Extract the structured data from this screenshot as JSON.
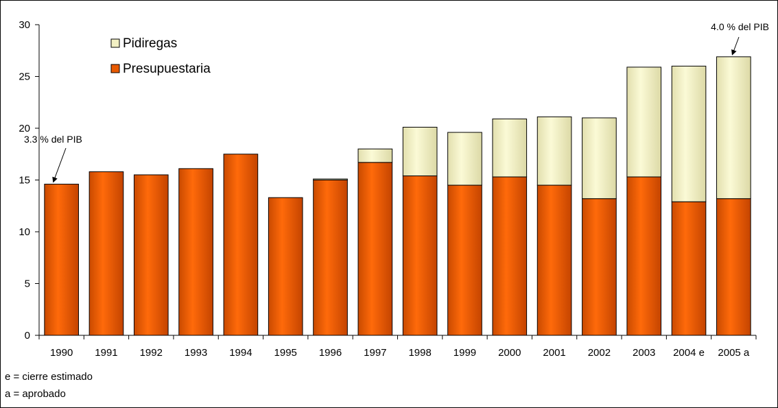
{
  "chart_data": {
    "type": "bar",
    "stacked": true,
    "categories": [
      "1990",
      "1991",
      "1992",
      "1993",
      "1994",
      "1995",
      "1996",
      "1997",
      "1998",
      "1999",
      "2000",
      "2001",
      "2002",
      "2003",
      "2004 e",
      "2005 a"
    ],
    "series": [
      {
        "name": "Presupuestaria",
        "color": "#e85a00",
        "values": [
          14.6,
          15.8,
          15.5,
          16.1,
          17.5,
          13.3,
          15.0,
          16.7,
          15.4,
          14.5,
          15.3,
          14.5,
          13.2,
          15.3,
          12.9,
          13.2
        ]
      },
      {
        "name": "Pidiregas",
        "color": "#f2f0c4",
        "values": [
          0,
          0,
          0,
          0,
          0,
          0,
          0.1,
          1.3,
          4.7,
          5.1,
          5.6,
          6.6,
          7.8,
          10.6,
          13.1,
          13.7
        ]
      }
    ],
    "legend": {
      "position": "top-left",
      "order": [
        "Pidiregas",
        "Presupuestaria"
      ]
    },
    "ylim": [
      0,
      30
    ],
    "yticks": [
      0,
      5,
      10,
      15,
      20,
      25,
      30
    ],
    "title": "",
    "xlabel": "",
    "ylabel": "",
    "grid": false,
    "annotations": [
      {
        "text": "3.3 % del PIB",
        "category": "1990"
      },
      {
        "text": "4.0 % del PIB",
        "category": "2005 a"
      }
    ]
  },
  "footnotes": {
    "e": "e = cierre estimado",
    "a": "a = aprobado"
  }
}
